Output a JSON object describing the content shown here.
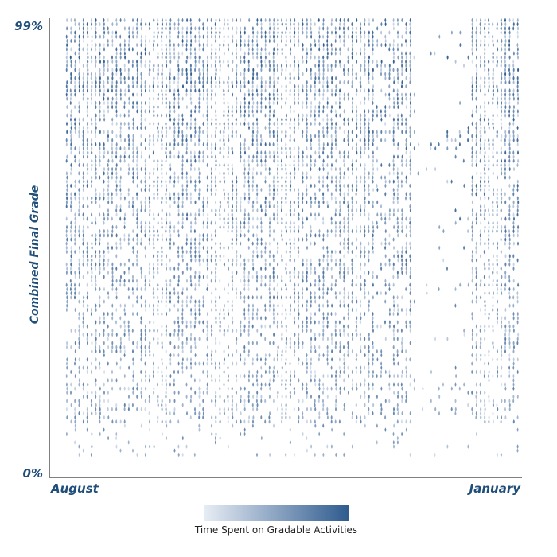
{
  "chart_data": {
    "type": "scatter",
    "title": "",
    "xlabel": "",
    "ylabel": "Combined Final Grade",
    "x_tick_labels": [
      "August",
      "January"
    ],
    "y_tick_labels": [
      "0%",
      "99%"
    ],
    "ylim": [
      0,
      99
    ],
    "x_range_labels": [
      "August",
      "January"
    ],
    "grid": false,
    "marker": "droplet",
    "color_scale": {
      "label": "Time Spent on Gradable Activities",
      "low_color": "#e8edf5",
      "high_color": "#2f5b8f",
      "legend_placement": "bottom-center"
    },
    "gaps_in_activity": [
      {
        "between": "mid-semester",
        "note": "sparse band near late December"
      }
    ],
    "density_note": "Dense grid of points, each representing a student's grade and activity date, with color intensity for time spent"
  },
  "colors": {
    "accent": "#1f4e7a",
    "point_dark": "#2f5b8f",
    "point_light": "#dfe6f0"
  }
}
